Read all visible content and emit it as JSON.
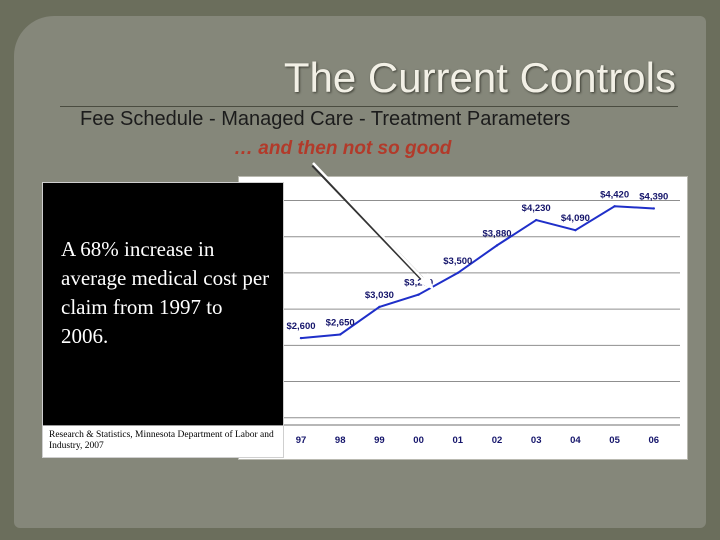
{
  "slide": {
    "title": "The Current Controls",
    "subtitle": "Fee Schedule - Managed Care - Treatment Parameters",
    "caveat": "… and then not so good",
    "callout_text": "A 68% increase in average medical cost per claim from 1997 to 2006.",
    "source_text": "Research & Statistics, Minnesota Department of Labor and Industry, 2007"
  },
  "chart_data": {
    "type": "line",
    "title": "",
    "xlabel": "",
    "ylabel": "",
    "categories": [
      "97",
      "98",
      "99",
      "00",
      "01",
      "02",
      "03",
      "04",
      "05",
      "06"
    ],
    "series": [
      {
        "values": [
          2600,
          2650,
          3030,
          3200,
          3500,
          3880,
          4230,
          4090,
          4420,
          4390
        ],
        "labels": [
          "$2,600",
          "$2,650",
          "$3,030",
          "$3,200",
          "$3,500",
          "$3,880",
          "$4,230",
          "$4,090",
          "$4,420",
          "$4,390"
        ]
      }
    ],
    "ylim": [
      1400,
      4700
    ],
    "grid": true,
    "legend": "none",
    "colors": {
      "line": "#1f2fc9",
      "label": "#15156b",
      "grid": "#8f8f8f",
      "tick": "#15156b"
    }
  }
}
